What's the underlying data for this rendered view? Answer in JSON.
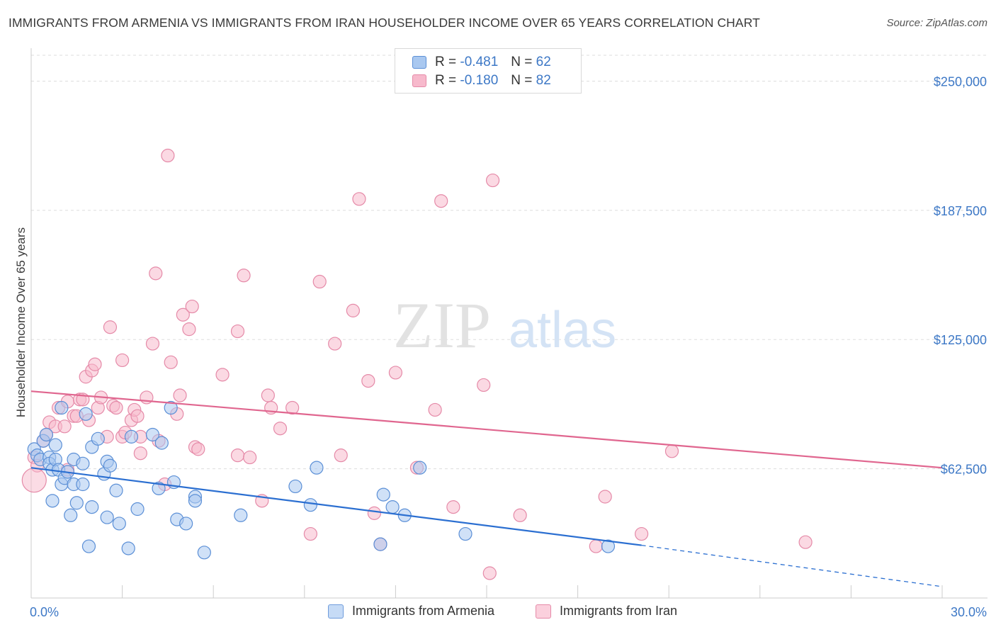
{
  "title": "IMMIGRANTS FROM ARMENIA VS IMMIGRANTS FROM IRAN HOUSEHOLDER INCOME OVER 65 YEARS CORRELATION CHART",
  "source": "Source: ZipAtlas.com",
  "watermark": {
    "zip": "ZIP",
    "atlas": "atlas"
  },
  "colors": {
    "blue_fill": "#a9c8f0",
    "blue_stroke": "#5b8fd6",
    "blue_line": "#2b6fd1",
    "pink_fill": "#f7b9cc",
    "pink_stroke": "#e58aa8",
    "pink_line": "#e0668f",
    "tick_text": "#3d78c6",
    "grid": "#dddddd"
  },
  "legend_top": [
    {
      "series": "armenia",
      "r_label": "R =",
      "r_value": "-0.481",
      "n_label": "N =",
      "n_value": "62"
    },
    {
      "series": "iran",
      "r_label": "R =",
      "r_value": "-0.180",
      "n_label": "N =",
      "n_value": "82"
    }
  ],
  "chart_data": {
    "type": "scatter",
    "title": "IMMIGRANTS FROM ARMENIA VS IMMIGRANTS FROM IRAN HOUSEHOLDER INCOME OVER 65 YEARS CORRELATION CHART",
    "xlabel": "",
    "ylabel": "Householder Income Over 65 years",
    "xlim": [
      0,
      30
    ],
    "ylim": [
      0,
      262500
    ],
    "x_tick_labels": [
      "0.0%",
      "30.0%"
    ],
    "y_ticks": [
      62500,
      125000,
      187500,
      250000
    ],
    "y_tick_labels": [
      "$62,500",
      "$125,000",
      "$187,500",
      "$250,000"
    ],
    "grid": true,
    "legend_position": "bottom",
    "series": [
      {
        "name": "Immigrants from Armenia",
        "color": "#a9c8f0",
        "trend": {
          "x0": 0.0,
          "y0": 63000,
          "x1": 20.1,
          "y1": 25500,
          "dashed_to_x": 30.0,
          "dashed_to_y": 5500
        },
        "points": [
          [
            0.1,
            72000
          ],
          [
            0.2,
            69000
          ],
          [
            0.3,
            67000
          ],
          [
            0.4,
            76000
          ],
          [
            0.5,
            79000
          ],
          [
            0.6,
            68000
          ],
          [
            0.6,
            65000
          ],
          [
            0.7,
            62000
          ],
          [
            0.7,
            47000
          ],
          [
            0.8,
            74000
          ],
          [
            0.8,
            67000
          ],
          [
            0.9,
            62000
          ],
          [
            1.0,
            92000
          ],
          [
            1.0,
            55000
          ],
          [
            1.1,
            58000
          ],
          [
            1.2,
            61000
          ],
          [
            1.3,
            40000
          ],
          [
            1.4,
            67000
          ],
          [
            1.4,
            55000
          ],
          [
            1.5,
            46000
          ],
          [
            1.7,
            65000
          ],
          [
            1.7,
            55000
          ],
          [
            1.8,
            89000
          ],
          [
            1.9,
            25000
          ],
          [
            2.0,
            73000
          ],
          [
            2.0,
            44000
          ],
          [
            2.2,
            77000
          ],
          [
            2.4,
            60000
          ],
          [
            2.5,
            66000
          ],
          [
            2.5,
            39000
          ],
          [
            2.6,
            64000
          ],
          [
            2.8,
            52000
          ],
          [
            2.9,
            36000
          ],
          [
            3.2,
            24000
          ],
          [
            3.3,
            78000
          ],
          [
            3.5,
            43000
          ],
          [
            4.0,
            79000
          ],
          [
            4.2,
            53000
          ],
          [
            4.3,
            75000
          ],
          [
            4.6,
            92000
          ],
          [
            4.7,
            56000
          ],
          [
            4.8,
            38000
          ],
          [
            5.1,
            36000
          ],
          [
            5.4,
            49000
          ],
          [
            5.4,
            47000
          ],
          [
            5.7,
            22000
          ],
          [
            6.9,
            40000
          ],
          [
            8.7,
            54000
          ],
          [
            9.2,
            45000
          ],
          [
            9.4,
            63000
          ],
          [
            11.6,
            50000
          ],
          [
            11.5,
            26000
          ],
          [
            11.9,
            44000
          ],
          [
            12.3,
            40000
          ],
          [
            12.8,
            63000
          ],
          [
            14.3,
            31000
          ],
          [
            19.0,
            25000
          ]
        ]
      },
      {
        "name": "Immigrants from Iran",
        "color": "#f7b9cc",
        "trend": {
          "x0": 0.0,
          "y0": 100000,
          "x1": 30.0,
          "y1": 63000
        },
        "points": [
          [
            0.1,
            68000
          ],
          [
            0.2,
            64000
          ],
          [
            0.4,
            76000
          ],
          [
            0.5,
            79000
          ],
          [
            0.6,
            85000
          ],
          [
            0.8,
            83000
          ],
          [
            0.9,
            92000
          ],
          [
            1.1,
            83000
          ],
          [
            1.2,
            62000
          ],
          [
            1.2,
            95000
          ],
          [
            1.4,
            88000
          ],
          [
            1.5,
            88000
          ],
          [
            1.6,
            96000
          ],
          [
            1.7,
            96000
          ],
          [
            1.8,
            107000
          ],
          [
            1.9,
            86000
          ],
          [
            2.0,
            110000
          ],
          [
            2.1,
            113000
          ],
          [
            2.2,
            92000
          ],
          [
            2.3,
            97000
          ],
          [
            2.5,
            78000
          ],
          [
            2.6,
            131000
          ],
          [
            2.7,
            93000
          ],
          [
            2.8,
            92000
          ],
          [
            3.0,
            78000
          ],
          [
            3.0,
            115000
          ],
          [
            3.1,
            80000
          ],
          [
            3.3,
            86000
          ],
          [
            3.4,
            91000
          ],
          [
            3.5,
            88000
          ],
          [
            3.6,
            78000
          ],
          [
            3.6,
            70000
          ],
          [
            3.8,
            97000
          ],
          [
            4.0,
            123000
          ],
          [
            4.2,
            76000
          ],
          [
            4.1,
            157000
          ],
          [
            4.4,
            55000
          ],
          [
            4.5,
            214000
          ],
          [
            4.6,
            114000
          ],
          [
            4.8,
            89000
          ],
          [
            4.9,
            98000
          ],
          [
            5.0,
            137000
          ],
          [
            5.2,
            130000
          ],
          [
            5.3,
            141000
          ],
          [
            5.4,
            73000
          ],
          [
            5.5,
            72000
          ],
          [
            6.3,
            108000
          ],
          [
            6.8,
            69000
          ],
          [
            6.8,
            129000
          ],
          [
            7.0,
            156000
          ],
          [
            7.2,
            68000
          ],
          [
            7.6,
            47000
          ],
          [
            7.8,
            98000
          ],
          [
            7.9,
            92000
          ],
          [
            8.2,
            82000
          ],
          [
            8.6,
            92000
          ],
          [
            9.2,
            31000
          ],
          [
            9.5,
            153000
          ],
          [
            10.0,
            123000
          ],
          [
            10.2,
            69000
          ],
          [
            10.6,
            139000
          ],
          [
            10.8,
            193000
          ],
          [
            11.1,
            105000
          ],
          [
            11.3,
            41000
          ],
          [
            11.5,
            26000
          ],
          [
            12.0,
            109000
          ],
          [
            12.7,
            63000
          ],
          [
            13.3,
            91000
          ],
          [
            13.5,
            192000
          ],
          [
            13.9,
            44000
          ],
          [
            14.9,
            103000
          ],
          [
            15.2,
            202000
          ],
          [
            15.1,
            12000
          ],
          [
            16.1,
            40000
          ],
          [
            18.6,
            25000
          ],
          [
            18.9,
            49000
          ],
          [
            20.1,
            31000
          ],
          [
            21.1,
            71000
          ],
          [
            25.5,
            27000
          ]
        ]
      }
    ]
  },
  "legend_bottom": [
    {
      "series": "armenia",
      "label": "Immigrants from Armenia"
    },
    {
      "series": "iran",
      "label": "Immigrants from Iran"
    }
  ]
}
